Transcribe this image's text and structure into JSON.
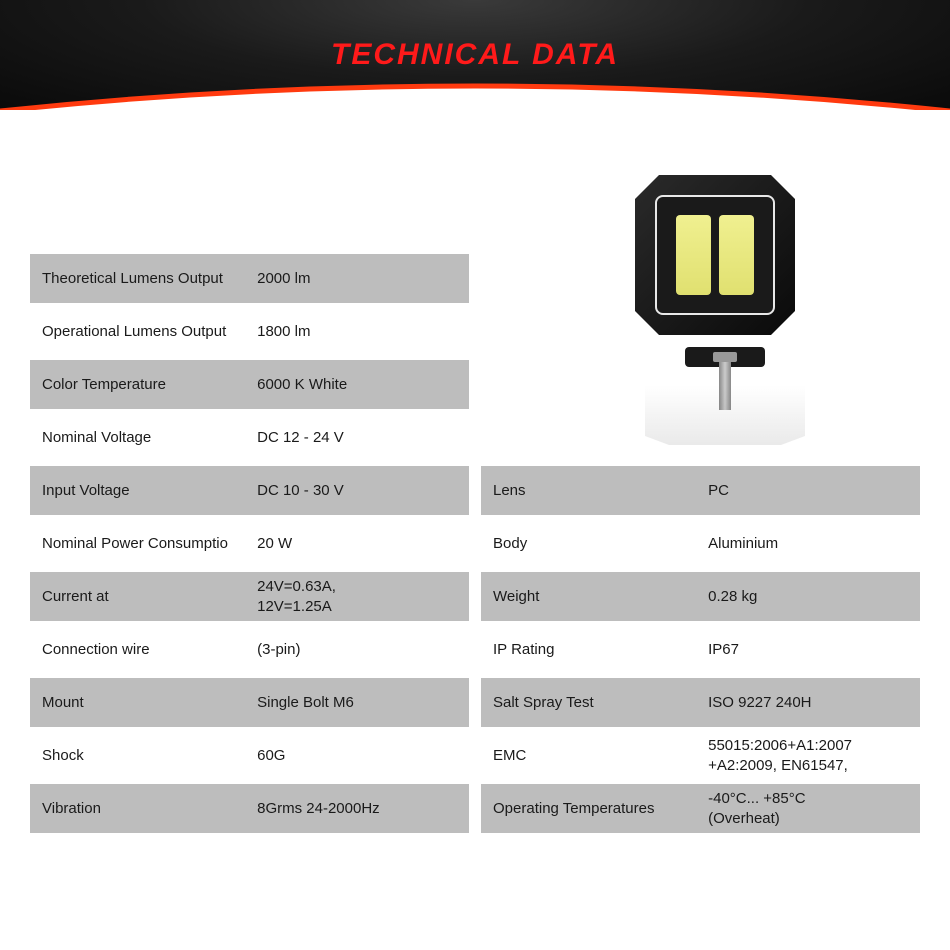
{
  "title": "TECHNICAL DATA",
  "colors": {
    "title_color": "#ff1a1a",
    "header_bg_dark": "#0a0a0a",
    "header_bg_light": "#3a3a3a",
    "arc_color": "#ff3a0f",
    "content_bg": "#ffffff",
    "row_odd_bg": "#bdbdbd",
    "row_even_bg": "#ffffff",
    "text_color": "#1a1a1a"
  },
  "left_specs": [
    {
      "label": "Theoretical Lumens Output",
      "value": "2000 lm"
    },
    {
      "label": "Operational Lumens Output",
      "value": "1800 lm"
    },
    {
      "label": "Color Temperature",
      "value": "6000 K White"
    },
    {
      "label": "Nominal Voltage",
      "value": "DC 12 - 24 V"
    },
    {
      "label": "Input Voltage",
      "value": "DC 10 - 30 V"
    },
    {
      "label": "Nominal Power Consumptio",
      "value": "20 W"
    },
    {
      "label": "Current at",
      "value": "24V=0.63A,\n12V=1.25A"
    },
    {
      "label": "Connection wire",
      "value": "(3-pin)"
    },
    {
      "label": "Mount",
      "value": "Single Bolt M6"
    },
    {
      "label": "Shock",
      "value": "60G"
    },
    {
      "label": "Vibration",
      "value": "8Grms 24-2000Hz"
    }
  ],
  "right_specs": [
    {
      "label": "Lens",
      "value": "PC"
    },
    {
      "label": "Body",
      "value": "Aluminium"
    },
    {
      "label": "Weight",
      "value": "0.28 kg"
    },
    {
      "label": "IP Rating",
      "value": "IP67"
    },
    {
      "label": "Salt Spray Test",
      "value": "ISO 9227 240H"
    },
    {
      "label": "EMC",
      "value": "55015:2006+A1:2007\n+A2:2009, EN61547,"
    },
    {
      "label": "Operating Temperatures",
      "value": "-40°C... +85°C\n(Overheat)"
    }
  ],
  "product": {
    "type": "LED Work Light",
    "body_color": "#1a1a1a",
    "led_color": "#e8e880"
  }
}
